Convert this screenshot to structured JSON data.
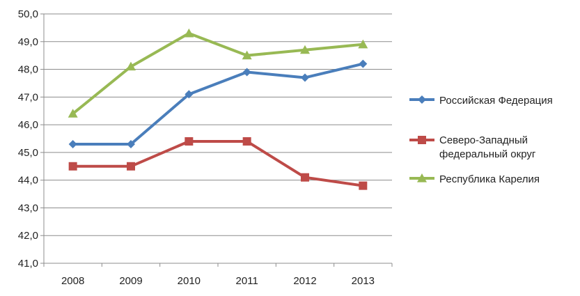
{
  "chart_data": {
    "type": "line",
    "categories": [
      "2008",
      "2009",
      "2010",
      "2011",
      "2012",
      "2013"
    ],
    "ylim": [
      41.0,
      50.0
    ],
    "yticks": [
      "41,0",
      "42,0",
      "43,0",
      "44,0",
      "45,0",
      "46,0",
      "47,0",
      "48,0",
      "49,0",
      "50,0"
    ],
    "grid": true,
    "legend_position": "right",
    "series": [
      {
        "name": "Российская Федерация",
        "legend_lines": [
          "Российская Федерация"
        ],
        "values": [
          45.3,
          45.3,
          47.1,
          47.9,
          47.7,
          48.2
        ],
        "color": "#4a7ebb",
        "marker": "diamond"
      },
      {
        "name": "Северо-Западный федеральный округ",
        "legend_lines": [
          "Северо-Западный",
          "федеральный округ"
        ],
        "values": [
          44.5,
          44.5,
          45.4,
          45.4,
          44.1,
          43.8
        ],
        "color": "#be4b48",
        "marker": "square"
      },
      {
        "name": "Республика Карелия",
        "legend_lines": [
          "Республика Карелия"
        ],
        "values": [
          46.4,
          48.1,
          49.3,
          48.5,
          48.7,
          48.9
        ],
        "color": "#98b954",
        "marker": "triangle"
      }
    ]
  }
}
